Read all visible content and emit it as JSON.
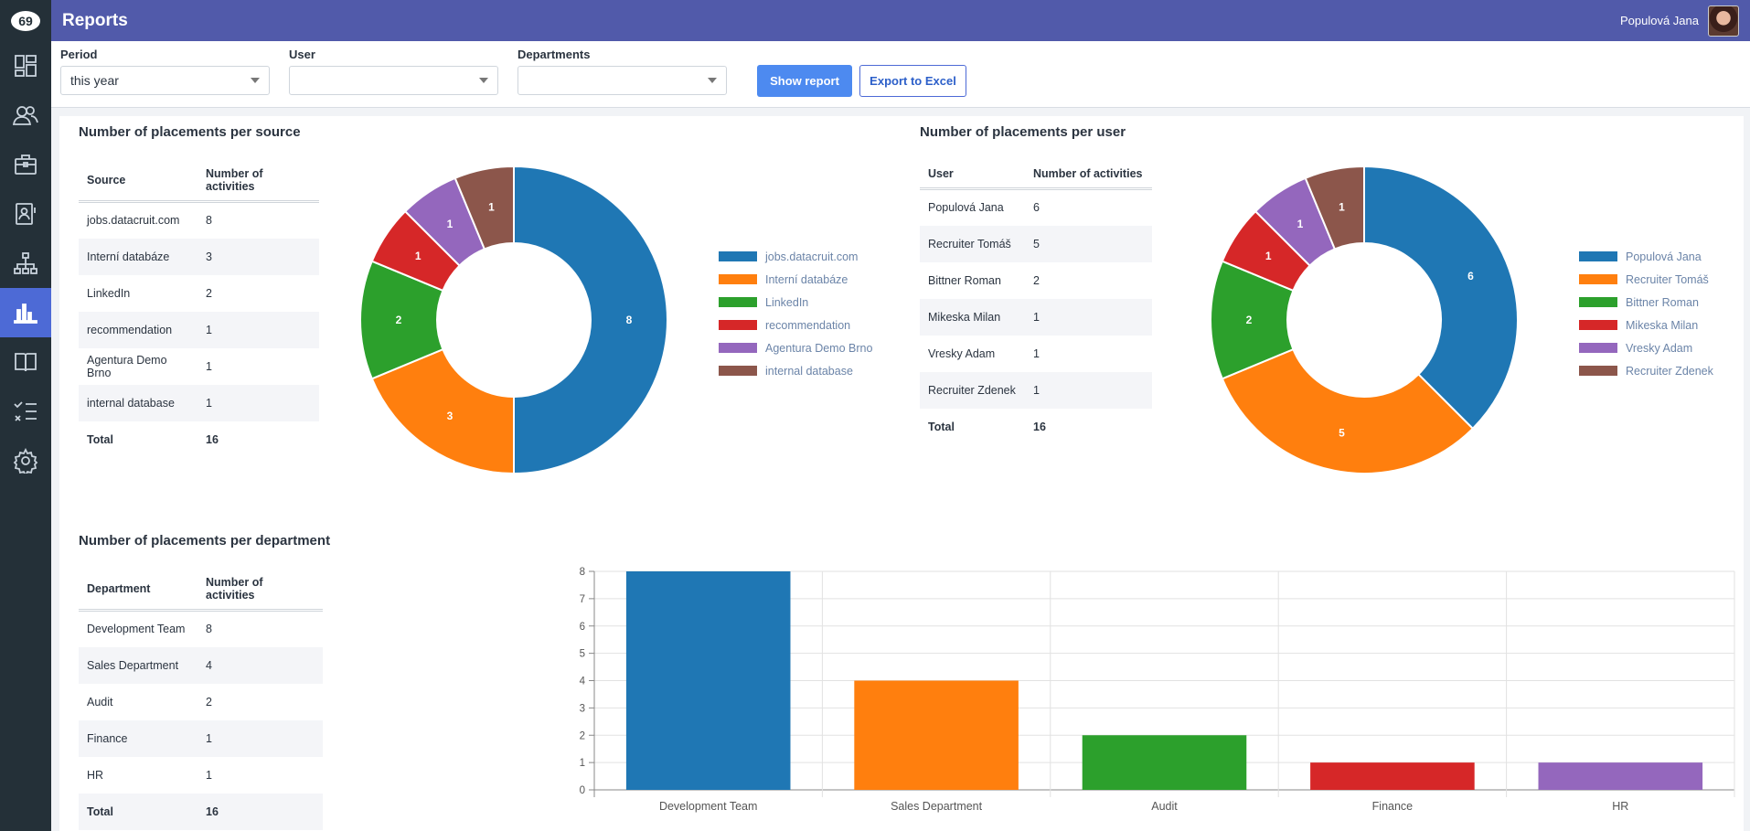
{
  "header": {
    "title": "Reports",
    "user_name": "Populová Jana"
  },
  "sidebar": {
    "items": [
      {
        "icon": "dashboard-icon"
      },
      {
        "icon": "users-icon"
      },
      {
        "icon": "briefcase-icon"
      },
      {
        "icon": "contact-card-icon"
      },
      {
        "icon": "org-chart-icon"
      },
      {
        "icon": "bar-chart-icon",
        "active": true
      },
      {
        "icon": "book-icon"
      },
      {
        "icon": "checklist-icon"
      },
      {
        "icon": "gear-icon"
      }
    ]
  },
  "filters": {
    "period": {
      "label": "Period",
      "value": "this year"
    },
    "user": {
      "label": "User",
      "value": ""
    },
    "departments": {
      "label": "Departments",
      "value": ""
    },
    "show_report_label": "Show report",
    "export_label": "Export to Excel"
  },
  "colors": [
    "#1f77b4",
    "#ff7f0e",
    "#2ca02c",
    "#d62728",
    "#9467bd",
    "#8c564b"
  ],
  "source": {
    "title": "Number of placements per source",
    "col1": "Source",
    "col2": "Number of activities",
    "rows": [
      {
        "name": "jobs.datacruit.com",
        "value": 8
      },
      {
        "name": "Interní databáze",
        "value": 3
      },
      {
        "name": "LinkedIn",
        "value": 2
      },
      {
        "name": "recommendation",
        "value": 1
      },
      {
        "name": "Agentura Demo Brno",
        "value": 1
      },
      {
        "name": "internal database",
        "value": 1
      }
    ],
    "total_label": "Total",
    "total": "16"
  },
  "user": {
    "title": "Number of placements per user",
    "col1": "User",
    "col2": "Number of activities",
    "rows": [
      {
        "name": "Populová Jana",
        "value": 6
      },
      {
        "name": "Recruiter Tomáš",
        "value": 5
      },
      {
        "name": "Bittner Roman",
        "value": 2
      },
      {
        "name": "Mikeska Milan",
        "value": 1
      },
      {
        "name": "Vresky Adam",
        "value": 1
      },
      {
        "name": "Recruiter Zdenek",
        "value": 1
      }
    ],
    "total_label": "Total",
    "total": "16"
  },
  "department": {
    "title": "Number of placements per department",
    "col1": "Department",
    "col2": "Number of activities",
    "rows": [
      {
        "name": "Development Team",
        "value": 8
      },
      {
        "name": "Sales Department",
        "value": 4
      },
      {
        "name": "Audit",
        "value": 2
      },
      {
        "name": "Finance",
        "value": 1
      },
      {
        "name": "HR",
        "value": 1
      }
    ],
    "total_label": "Total",
    "total": "16"
  },
  "chart_data": [
    {
      "type": "pie",
      "title": "Number of placements per source",
      "categories": [
        "jobs.datacruit.com",
        "Interní databáze",
        "LinkedIn",
        "recommendation",
        "Agentura Demo Brno",
        "internal database"
      ],
      "values": [
        8,
        3,
        2,
        1,
        1,
        1
      ],
      "legend": "right"
    },
    {
      "type": "pie",
      "title": "Number of placements per user",
      "categories": [
        "Populová Jana",
        "Recruiter Tomáš",
        "Bittner Roman",
        "Mikeska Milan",
        "Vresky Adam",
        "Recruiter Zdenek"
      ],
      "values": [
        6,
        5,
        2,
        1,
        1,
        1
      ],
      "legend": "right"
    },
    {
      "type": "bar",
      "title": "Number of placements per department",
      "categories": [
        "Development Team",
        "Sales Department",
        "Audit",
        "Finance",
        "HR"
      ],
      "values": [
        8,
        4,
        2,
        1,
        1
      ],
      "ylim": [
        0,
        8
      ],
      "yticks": [
        "0",
        "1",
        "2",
        "3",
        "4",
        "5",
        "6",
        "7",
        "8"
      ],
      "grid": true
    }
  ]
}
